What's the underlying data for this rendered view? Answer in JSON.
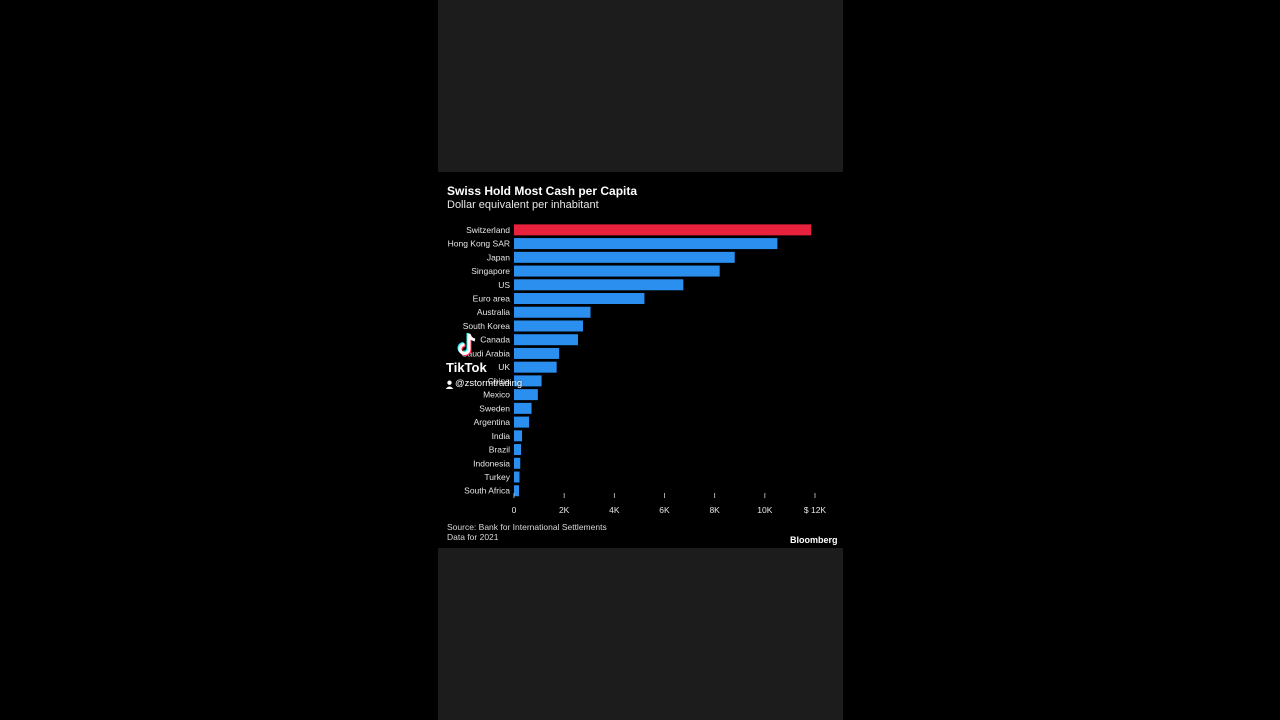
{
  "chart_data": {
    "type": "bar",
    "orientation": "horizontal",
    "title": "Swiss Hold Most Cash per Capita",
    "subtitle": "Dollar equivalent per inhabitant",
    "categories": [
      "Switzerland",
      "Hong Kong SAR",
      "Japan",
      "Singapore",
      "US",
      "Euro area",
      "Australia",
      "South Korea",
      "Canada",
      "Saudi Arabia",
      "UK",
      "China",
      "Mexico",
      "Sweden",
      "Argentina",
      "India",
      "Brazil",
      "Indonesia",
      "Turkey",
      "South Africa"
    ],
    "values": [
      11850,
      10500,
      8800,
      8200,
      6750,
      5200,
      3050,
      2750,
      2550,
      1800,
      1700,
      1100,
      950,
      700,
      600,
      320,
      280,
      250,
      220,
      200
    ],
    "highlight_index": 0,
    "xlim": [
      0,
      12000
    ],
    "x_ticks": [
      {
        "value": 0,
        "label": "0"
      },
      {
        "value": 2000,
        "label": "2K"
      },
      {
        "value": 4000,
        "label": "4K"
      },
      {
        "value": 6000,
        "label": "6K"
      },
      {
        "value": 8000,
        "label": "8K"
      },
      {
        "value": 10000,
        "label": "10K"
      },
      {
        "value": 12000,
        "label": "$ 12K"
      }
    ],
    "grid": false,
    "colors": {
      "highlight": "#e8213d",
      "bar": "#2b8ff0"
    }
  },
  "footer": {
    "source": "Source: Bank for International Settlements",
    "note": "Data for 2021",
    "brand": "Bloomberg"
  },
  "overlay": {
    "app_name": "TikTok",
    "handle": "@zstormtrading",
    "icon": "tiktok-logo-icon",
    "user_icon": "user-icon"
  }
}
